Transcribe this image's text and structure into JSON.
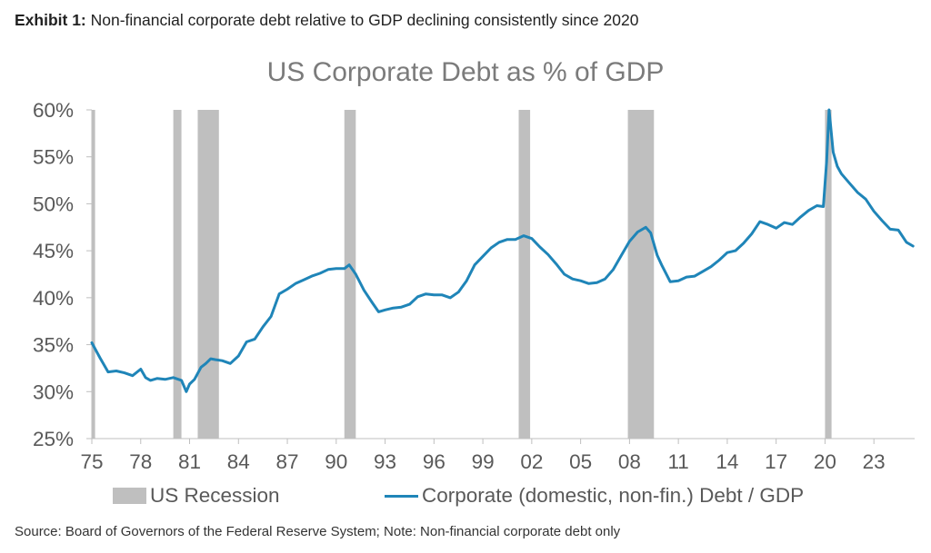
{
  "header": {
    "exhibit_label": "Exhibit 1:",
    "exhibit_text": " Non-financial corporate debt relative to GDP declining consistently since 2020"
  },
  "footer": {
    "source": "Source: Board of Governors of the Federal Reserve System; Note: Non-financial corporate debt only"
  },
  "colors": {
    "line": "#1f85b8",
    "recession": "#bfbfbf",
    "axis_text": "#595959",
    "title": "#7b7b7b"
  },
  "chart_data": {
    "type": "line",
    "title": "US Corporate Debt as % of GDP",
    "xlabel": "",
    "ylabel": "",
    "xlim": [
      1975,
      2025.5
    ],
    "ylim": [
      25,
      60
    ],
    "grid": false,
    "legend_position": "bottom",
    "x_ticks": [
      1975,
      1978,
      1981,
      1984,
      1987,
      1990,
      1993,
      1996,
      1999,
      2002,
      2005,
      2008,
      2011,
      2014,
      2017,
      2020,
      2023
    ],
    "x_tick_labels": [
      "75",
      "78",
      "81",
      "84",
      "87",
      "90",
      "93",
      "96",
      "99",
      "02",
      "05",
      "08",
      "11",
      "14",
      "17",
      "20",
      "23"
    ],
    "y_ticks": [
      25,
      30,
      35,
      40,
      45,
      50,
      55,
      60
    ],
    "y_tick_labels": [
      "25%",
      "30%",
      "35%",
      "40%",
      "45%",
      "50%",
      "55%",
      "60%"
    ],
    "legend": [
      "US Recession",
      "Corporate (domestic, non-fin.) Debt / GDP"
    ],
    "recessions": [
      {
        "start": 1975.0,
        "end": 1975.2
      },
      {
        "start": 1980.0,
        "end": 1980.5
      },
      {
        "start": 1981.5,
        "end": 1982.8
      },
      {
        "start": 1990.5,
        "end": 1991.2
      },
      {
        "start": 2001.2,
        "end": 2001.9
      },
      {
        "start": 2007.9,
        "end": 2009.5
      },
      {
        "start": 2020.0,
        "end": 2020.4
      }
    ],
    "series": [
      {
        "name": "Corporate (domestic, non-fin.) Debt / GDP",
        "x": [
          1975.0,
          1975.5,
          1976.0,
          1976.5,
          1977.0,
          1977.5,
          1978.0,
          1978.3,
          1978.6,
          1979.0,
          1979.5,
          1980.0,
          1980.5,
          1980.8,
          1981.0,
          1981.3,
          1981.7,
          1982.0,
          1982.3,
          1982.6,
          1983.0,
          1983.5,
          1984.0,
          1984.5,
          1985.0,
          1985.5,
          1986.0,
          1986.5,
          1987.0,
          1987.5,
          1988.0,
          1988.5,
          1989.0,
          1989.5,
          1990.0,
          1990.5,
          1990.8,
          1991.2,
          1991.7,
          1992.2,
          1992.6,
          1993.0,
          1993.5,
          1994.0,
          1994.5,
          1995.0,
          1995.5,
          1996.0,
          1996.5,
          1997.0,
          1997.5,
          1998.0,
          1998.5,
          1999.0,
          1999.5,
          2000.0,
          2000.5,
          2001.0,
          2001.5,
          2002.0,
          2002.5,
          2003.0,
          2003.5,
          2004.0,
          2004.5,
          2005.0,
          2005.5,
          2006.0,
          2006.5,
          2007.0,
          2007.5,
          2008.0,
          2008.5,
          2009.0,
          2009.3,
          2009.7,
          2010.0,
          2010.5,
          2011.0,
          2011.5,
          2012.0,
          2012.5,
          2013.0,
          2013.5,
          2014.0,
          2014.5,
          2015.0,
          2015.5,
          2016.0,
          2016.5,
          2017.0,
          2017.5,
          2018.0,
          2018.5,
          2019.0,
          2019.5,
          2019.9,
          2020.1,
          2020.25,
          2020.5,
          2020.75,
          2021.0,
          2021.5,
          2022.0,
          2022.5,
          2023.0,
          2023.5,
          2024.0,
          2024.5,
          2025.0,
          2025.4
        ],
        "values": [
          35.2,
          33.6,
          32.1,
          32.2,
          32.0,
          31.7,
          32.4,
          31.5,
          31.2,
          31.4,
          31.3,
          31.5,
          31.2,
          30.0,
          30.8,
          31.3,
          32.6,
          33.0,
          33.5,
          33.4,
          33.3,
          33.0,
          33.8,
          35.3,
          35.6,
          36.9,
          38.0,
          40.4,
          40.9,
          41.5,
          41.9,
          42.3,
          42.6,
          43.0,
          43.1,
          43.1,
          43.5,
          42.5,
          40.8,
          39.5,
          38.5,
          38.7,
          38.9,
          39.0,
          39.3,
          40.1,
          40.4,
          40.3,
          40.3,
          40.0,
          40.6,
          41.8,
          43.5,
          44.4,
          45.3,
          45.9,
          46.2,
          46.2,
          46.6,
          46.3,
          45.4,
          44.6,
          43.6,
          42.5,
          42.0,
          41.8,
          41.5,
          41.6,
          42.0,
          43.0,
          44.5,
          46.0,
          47.0,
          47.5,
          46.9,
          44.5,
          43.4,
          41.7,
          41.8,
          42.2,
          42.3,
          42.8,
          43.3,
          44.0,
          44.8,
          45.0,
          45.8,
          46.8,
          48.1,
          47.8,
          47.4,
          48.0,
          47.8,
          48.6,
          49.3,
          49.8,
          49.7,
          54.5,
          60.0,
          55.5,
          54.0,
          53.2,
          52.2,
          51.2,
          50.5,
          49.2,
          48.2,
          47.3,
          47.2,
          45.9,
          45.5
        ]
      }
    ]
  }
}
